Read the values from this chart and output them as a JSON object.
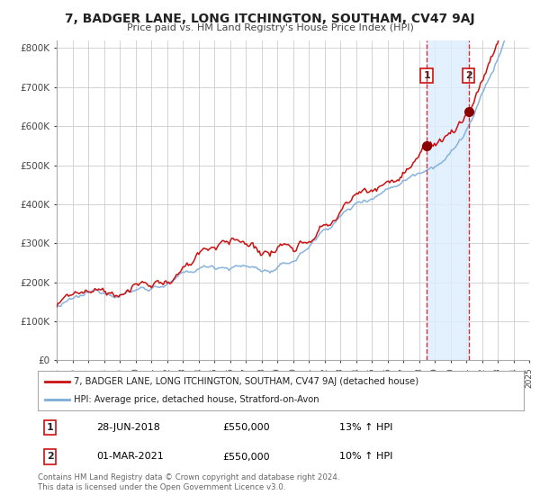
{
  "title": "7, BADGER LANE, LONG ITCHINGTON, SOUTHAM, CV47 9AJ",
  "subtitle": "Price paid vs. HM Land Registry's House Price Index (HPI)",
  "ylabel_ticks": [
    "£0",
    "£100K",
    "£200K",
    "£300K",
    "£400K",
    "£500K",
    "£600K",
    "£700K",
    "£800K"
  ],
  "ytick_values": [
    0,
    100000,
    200000,
    300000,
    400000,
    500000,
    600000,
    700000,
    800000
  ],
  "ylim": [
    0,
    820000
  ],
  "start_year": 1995,
  "end_year": 2025,
  "hpi_color": "#7aabdb",
  "price_color": "#cc1111",
  "dot_color": "#8b0000",
  "vline_color": "#cc1111",
  "vline2_color": "#cc1111",
  "shade_color": "#ddeeff",
  "transaction1_date": 2018.49,
  "transaction2_date": 2021.16,
  "transaction1_price": 550000,
  "transaction2_price": 550000,
  "legend1": "7, BADGER LANE, LONG ITCHINGTON, SOUTHAM, CV47 9AJ (detached house)",
  "legend2": "HPI: Average price, detached house, Stratford-on-Avon",
  "note1_num": "1",
  "note1_date": "28-JUN-2018",
  "note1_price": "£550,000",
  "note1_hpi": "13% ↑ HPI",
  "note2_num": "2",
  "note2_date": "01-MAR-2021",
  "note2_price": "£550,000",
  "note2_hpi": "10% ↑ HPI",
  "footer": "Contains HM Land Registry data © Crown copyright and database right 2024.\nThis data is licensed under the Open Government Licence v3.0.",
  "background_color": "#ffffff",
  "grid_color": "#cccccc"
}
